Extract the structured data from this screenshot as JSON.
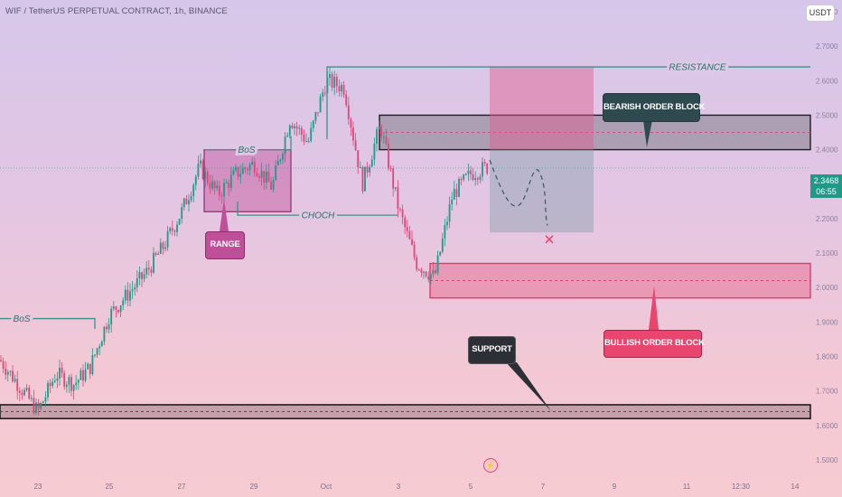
{
  "header": {
    "symbol_title": "WIF / TetherUS PERPETUAL CONTRACT, 1h, BINANCE",
    "currency": "USDT"
  },
  "price_tag": {
    "price": "2.3468",
    "countdown": "06:55"
  },
  "chart_data": {
    "type": "candlestick",
    "title": "WIF / TetherUS PERPETUAL CONTRACT, 1h, BINANCE",
    "x_tick_labels": [
      "23",
      "25",
      "27",
      "29",
      "Oct",
      "3",
      "5",
      "7",
      "9",
      "11",
      "12:30",
      "14"
    ],
    "y_tick_labels": [
      "2.8000",
      "2.7000",
      "2.6000",
      "2.5000",
      "2.4000",
      "2.3000",
      "2.2000",
      "2.1000",
      "2.0000",
      "1.9000",
      "1.8000",
      "1.7000",
      "1.6000",
      "1.5000"
    ],
    "ylim": [
      1.5,
      2.8
    ],
    "last_price": 2.3468,
    "price_path": [
      [
        "22",
        1.79
      ],
      [
        "22.5",
        1.72
      ],
      [
        "23",
        1.64
      ],
      [
        "23.5",
        1.75
      ],
      [
        "24",
        1.72
      ],
      [
        "24.5",
        1.77
      ],
      [
        "25",
        1.92
      ],
      [
        "25.5",
        1.98
      ],
      [
        "26",
        2.04
      ],
      [
        "26.5",
        2.12
      ],
      [
        "27",
        2.22
      ],
      [
        "27.5",
        2.35
      ],
      [
        "28",
        2.27
      ],
      [
        "28.5",
        2.33
      ],
      [
        "29",
        2.36
      ],
      [
        "29.5",
        2.29
      ],
      [
        "30",
        2.49
      ],
      [
        "30.5",
        2.42
      ],
      [
        "Oct",
        2.6
      ],
      [
        "1.5",
        2.58
      ],
      [
        "2",
        2.3
      ],
      [
        "2.5",
        2.47
      ],
      [
        "3",
        2.23
      ],
      [
        "3.5",
        2.07
      ],
      [
        "4",
        2.03
      ],
      [
        "4.5",
        2.27
      ],
      [
        "5",
        2.33
      ],
      [
        "5.5",
        2.35
      ]
    ],
    "levels": [
      {
        "label": "RESISTANCE",
        "price": 2.64
      },
      {
        "label": "BoS",
        "price": 2.4
      },
      {
        "label": "CHOCH",
        "price": 2.21
      },
      {
        "label": "BoS",
        "price": 1.91
      }
    ],
    "zones": [
      {
        "label": "BEARISH ORDER BLOCK",
        "from": 2.4,
        "to": 2.5
      },
      {
        "label": "BULLISH ORDER BLOCK",
        "from": 1.97,
        "to": 2.07
      },
      {
        "label": "SUPPORT",
        "from": 1.62,
        "to": 1.66
      },
      {
        "label": "RANGE",
        "from": 2.22,
        "to": 2.4
      }
    ],
    "projection": {
      "entry": 2.4,
      "stop": 2.64,
      "target": 2.16
    },
    "colors": {
      "up": "#1f9a88",
      "down": "#e0457b",
      "bearish_block": "#2a2a2a",
      "bullish_block": "#e8466f",
      "range": "#c04f9a"
    }
  },
  "annotations": {
    "bos_label": "BoS",
    "choch_label": "CHOCH",
    "resistance_label": "RESISTANCE",
    "range_label": "RANGE",
    "bearish_label": "BEARISH ORDER BLOCK",
    "bullish_label": "BULLISH ORDER BLOCK",
    "support_label": "SUPPORT"
  }
}
